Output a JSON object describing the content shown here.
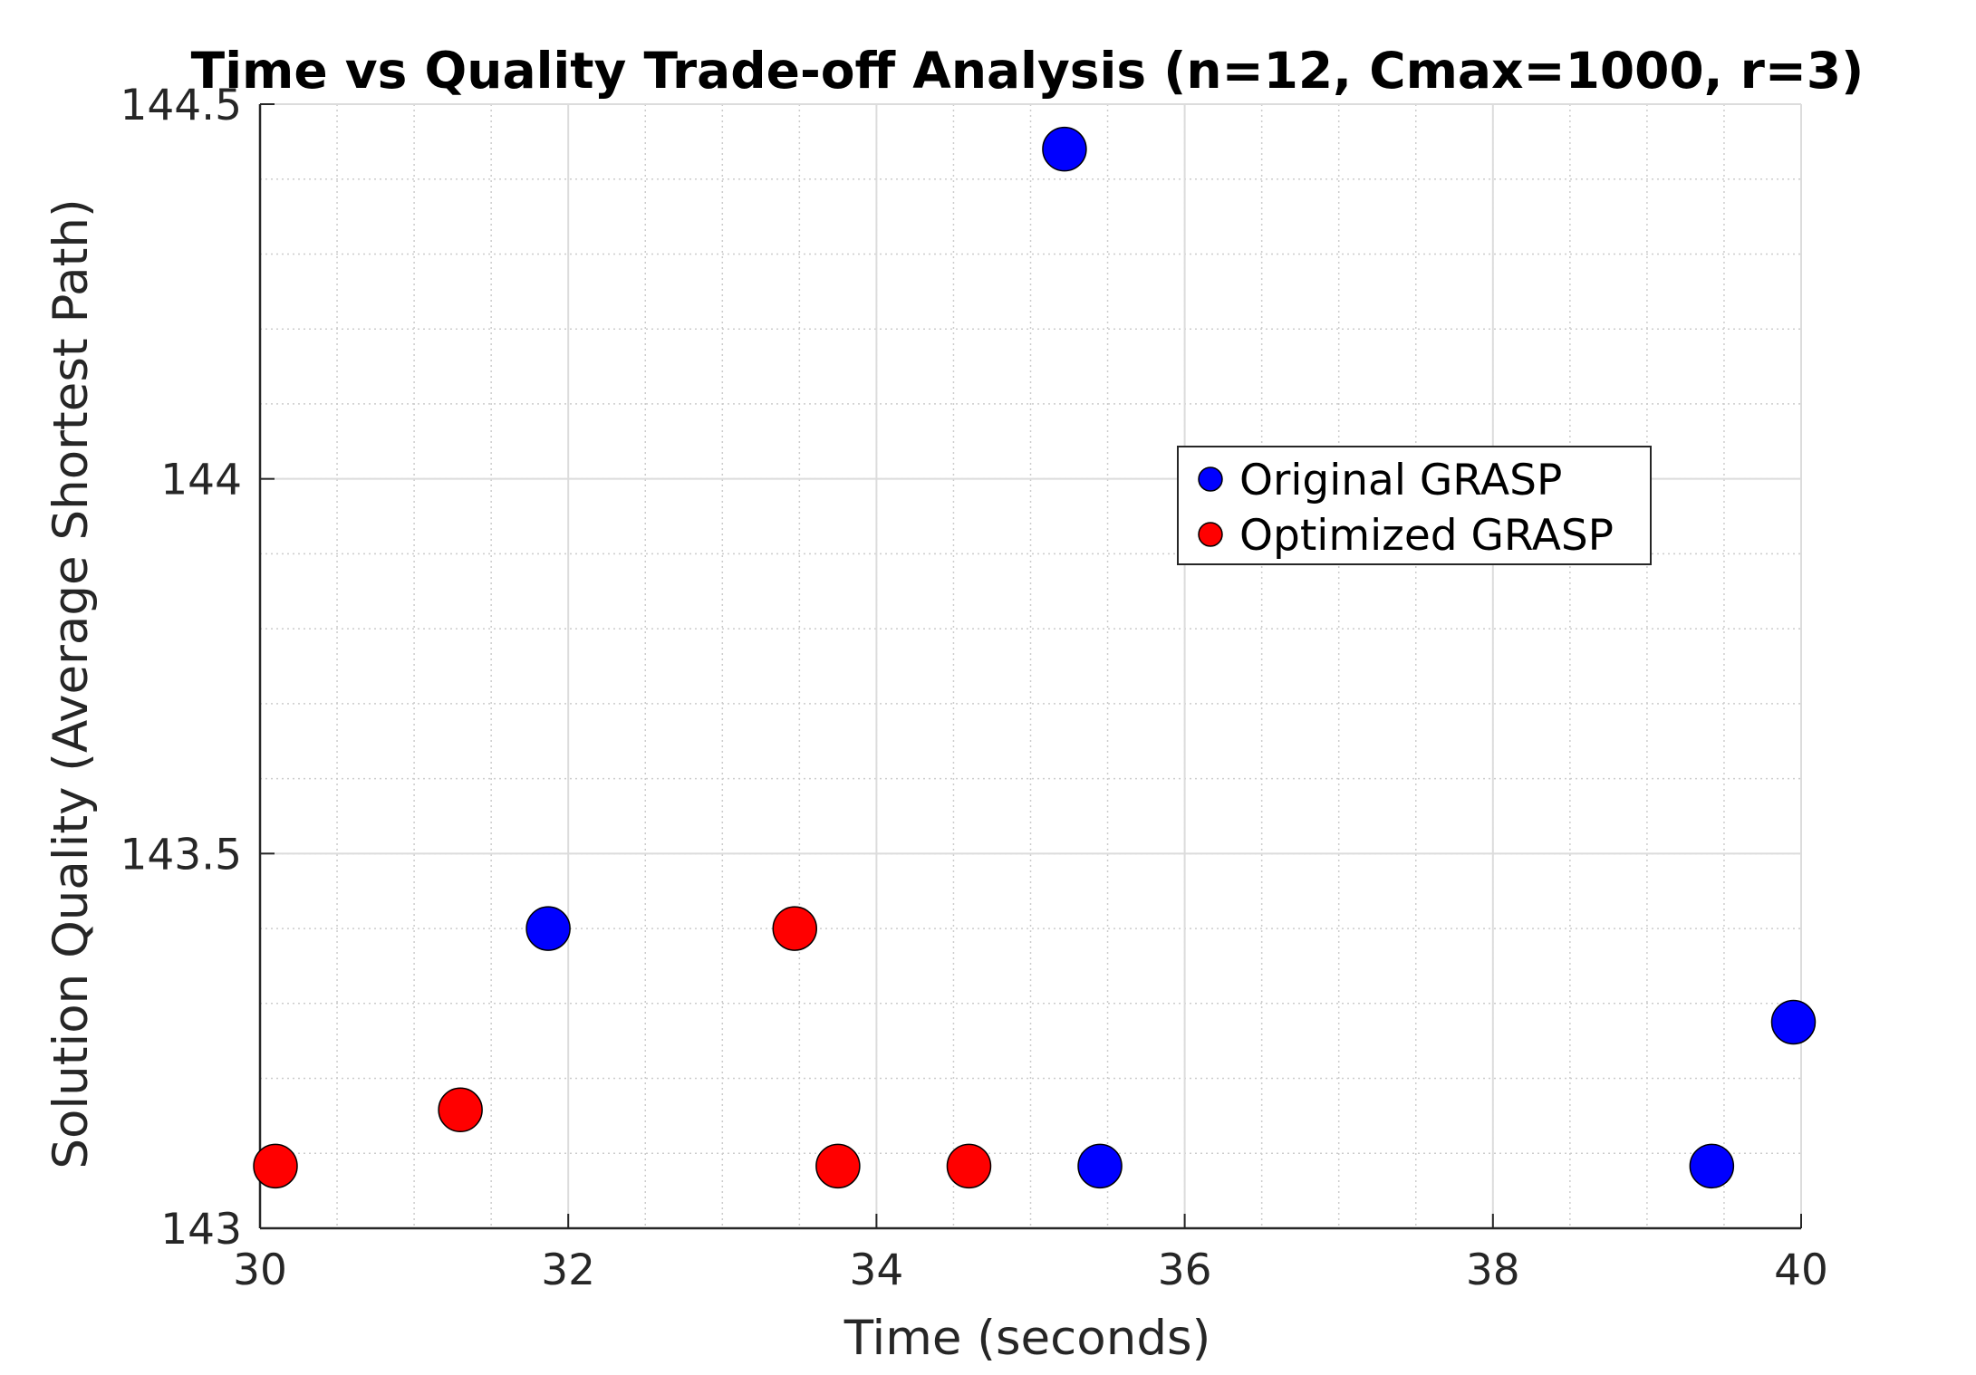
{
  "chart_data": {
    "type": "scatter",
    "title": "Time vs Quality Trade-off Analysis (n=12, Cmax=1000, r=3)",
    "xlabel": "Time (seconds)",
    "ylabel": "Solution Quality (Average Shortest Path)",
    "xlim": [
      30,
      40
    ],
    "ylim": [
      143,
      144.5
    ],
    "xticks": [
      30,
      32,
      34,
      36,
      38,
      40
    ],
    "xtick_labels": [
      "30",
      "32",
      "34",
      "36",
      "38",
      "40"
    ],
    "yticks": [
      143,
      143.5,
      144,
      144.5
    ],
    "ytick_labels": [
      "143",
      "143.5",
      "144",
      "144.5"
    ],
    "grid": true,
    "minor_grid": true,
    "legend_position": "center-right",
    "series": [
      {
        "name": "Original GRASP",
        "color": "#0000ff",
        "points": [
          {
            "x": 31.87,
            "y": 143.4
          },
          {
            "x": 35.22,
            "y": 144.44
          },
          {
            "x": 35.45,
            "y": 143.083
          },
          {
            "x": 39.42,
            "y": 143.083
          },
          {
            "x": 39.95,
            "y": 143.275
          }
        ]
      },
      {
        "name": "Optimized GRASP",
        "color": "#ff0000",
        "points": [
          {
            "x": 30.1,
            "y": 143.083
          },
          {
            "x": 31.3,
            "y": 143.158
          },
          {
            "x": 33.47,
            "y": 143.4
          },
          {
            "x": 33.75,
            "y": 143.083
          },
          {
            "x": 34.6,
            "y": 143.083
          }
        ]
      }
    ]
  }
}
